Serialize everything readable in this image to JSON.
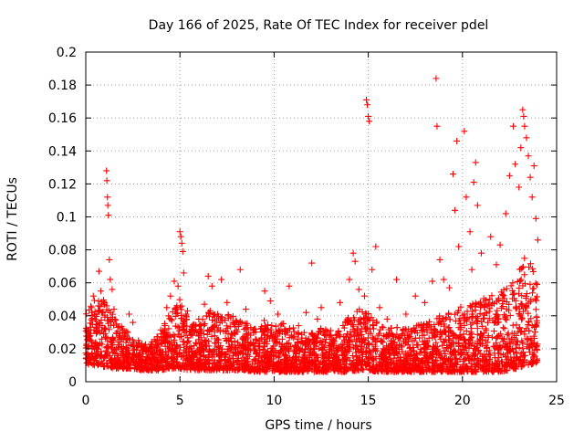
{
  "chart_data": {
    "type": "scatter",
    "title": "Day 166 of 2025, Rate Of TEC Index for receiver pdel",
    "xlabel": "GPS time / hours",
    "ylabel": "ROTI / TECUs",
    "xlim": [
      0,
      25
    ],
    "ylim": [
      0,
      0.2
    ],
    "x_ticks": [
      "0",
      "5",
      "10",
      "15",
      "20",
      "25"
    ],
    "y_ticks": [
      "0",
      "0.02",
      "0.04",
      "0.06",
      "0.08",
      "0.1",
      "0.12",
      "0.14",
      "0.16",
      "0.18",
      "0.2"
    ],
    "grid": true,
    "marker": "+",
    "color": "#ff0000",
    "points": [
      [
        0.1,
        0.021
      ],
      [
        0.2,
        0.028
      ],
      [
        0.3,
        0.045
      ],
      [
        0.4,
        0.052
      ],
      [
        0.5,
        0.038
      ],
      [
        0.6,
        0.031
      ],
      [
        0.7,
        0.067
      ],
      [
        0.8,
        0.055
      ],
      [
        0.9,
        0.042
      ],
      [
        1.0,
        0.048
      ],
      [
        1.1,
        0.128
      ],
      [
        1.12,
        0.122
      ],
      [
        1.15,
        0.112
      ],
      [
        1.17,
        0.107
      ],
      [
        1.2,
        0.101
      ],
      [
        1.25,
        0.074
      ],
      [
        1.3,
        0.062
      ],
      [
        1.4,
        0.056
      ],
      [
        1.5,
        0.044
      ],
      [
        1.7,
        0.033
      ],
      [
        2.0,
        0.026
      ],
      [
        2.3,
        0.041
      ],
      [
        2.5,
        0.036
      ],
      [
        2.8,
        0.022
      ],
      [
        3.0,
        0.019
      ],
      [
        3.5,
        0.024
      ],
      [
        3.8,
        0.018
      ],
      [
        4.0,
        0.029
      ],
      [
        4.3,
        0.045
      ],
      [
        4.5,
        0.052
      ],
      [
        4.7,
        0.061
      ],
      [
        4.9,
        0.058
      ],
      [
        5.0,
        0.091
      ],
      [
        5.05,
        0.088
      ],
      [
        5.1,
        0.084
      ],
      [
        5.15,
        0.079
      ],
      [
        5.2,
        0.066
      ],
      [
        5.4,
        0.043
      ],
      [
        5.7,
        0.031
      ],
      [
        6.0,
        0.038
      ],
      [
        6.3,
        0.047
      ],
      [
        6.5,
        0.064
      ],
      [
        6.7,
        0.058
      ],
      [
        7.0,
        0.041
      ],
      [
        7.2,
        0.062
      ],
      [
        7.5,
        0.048
      ],
      [
        7.8,
        0.036
      ],
      [
        8.2,
        0.068
      ],
      [
        8.5,
        0.044
      ],
      [
        9.0,
        0.032
      ],
      [
        9.5,
        0.055
      ],
      [
        9.8,
        0.049
      ],
      [
        10.2,
        0.041
      ],
      [
        10.8,
        0.058
      ],
      [
        11.3,
        0.034
      ],
      [
        11.7,
        0.042
      ],
      [
        12.0,
        0.072
      ],
      [
        12.3,
        0.038
      ],
      [
        12.5,
        0.045
      ],
      [
        13.0,
        0.031
      ],
      [
        13.5,
        0.048
      ],
      [
        14.0,
        0.062
      ],
      [
        14.2,
        0.078
      ],
      [
        14.3,
        0.073
      ],
      [
        14.5,
        0.056
      ],
      [
        14.8,
        0.052
      ],
      [
        14.9,
        0.171
      ],
      [
        14.95,
        0.168
      ],
      [
        15.0,
        0.161
      ],
      [
        15.05,
        0.158
      ],
      [
        15.2,
        0.068
      ],
      [
        15.4,
        0.082
      ],
      [
        15.6,
        0.045
      ],
      [
        16.0,
        0.038
      ],
      [
        16.5,
        0.062
      ],
      [
        17.0,
        0.041
      ],
      [
        17.5,
        0.052
      ],
      [
        18.0,
        0.048
      ],
      [
        18.4,
        0.061
      ],
      [
        18.6,
        0.184
      ],
      [
        18.65,
        0.155
      ],
      [
        18.8,
        0.074
      ],
      [
        19.0,
        0.062
      ],
      [
        19.3,
        0.057
      ],
      [
        19.5,
        0.126
      ],
      [
        19.6,
        0.104
      ],
      [
        19.7,
        0.146
      ],
      [
        19.8,
        0.082
      ],
      [
        20.1,
        0.152
      ],
      [
        20.2,
        0.112
      ],
      [
        20.4,
        0.091
      ],
      [
        20.5,
        0.068
      ],
      [
        20.6,
        0.121
      ],
      [
        20.7,
        0.133
      ],
      [
        20.8,
        0.107
      ],
      [
        21.0,
        0.078
      ],
      [
        21.5,
        0.088
      ],
      [
        21.8,
        0.071
      ],
      [
        22.0,
        0.083
      ],
      [
        22.3,
        0.102
      ],
      [
        22.5,
        0.125
      ],
      [
        22.7,
        0.155
      ],
      [
        22.8,
        0.132
      ],
      [
        23.0,
        0.118
      ],
      [
        23.1,
        0.142
      ],
      [
        23.2,
        0.165
      ],
      [
        23.25,
        0.161
      ],
      [
        23.3,
        0.155
      ],
      [
        23.4,
        0.148
      ],
      [
        23.5,
        0.137
      ],
      [
        23.6,
        0.124
      ],
      [
        23.7,
        0.112
      ],
      [
        23.8,
        0.131
      ],
      [
        23.9,
        0.099
      ],
      [
        24.0,
        0.086
      ]
    ],
    "band": [
      [
        0.0,
        0.01,
        0.042
      ],
      [
        0.5,
        0.01,
        0.05
      ],
      [
        1.0,
        0.009,
        0.05
      ],
      [
        1.5,
        0.008,
        0.04
      ],
      [
        2.0,
        0.008,
        0.032
      ],
      [
        2.5,
        0.008,
        0.03
      ],
      [
        3.0,
        0.007,
        0.024
      ],
      [
        3.5,
        0.007,
        0.024
      ],
      [
        4.0,
        0.007,
        0.032
      ],
      [
        4.5,
        0.008,
        0.044
      ],
      [
        5.0,
        0.008,
        0.05
      ],
      [
        5.5,
        0.007,
        0.036
      ],
      [
        6.0,
        0.007,
        0.034
      ],
      [
        6.5,
        0.007,
        0.044
      ],
      [
        7.0,
        0.007,
        0.04
      ],
      [
        7.5,
        0.007,
        0.042
      ],
      [
        8.0,
        0.007,
        0.04
      ],
      [
        8.5,
        0.007,
        0.036
      ],
      [
        9.0,
        0.006,
        0.034
      ],
      [
        9.5,
        0.006,
        0.038
      ],
      [
        10.0,
        0.006,
        0.034
      ],
      [
        10.5,
        0.006,
        0.036
      ],
      [
        11.0,
        0.006,
        0.034
      ],
      [
        11.5,
        0.006,
        0.03
      ],
      [
        12.0,
        0.006,
        0.03
      ],
      [
        12.5,
        0.006,
        0.034
      ],
      [
        13.0,
        0.006,
        0.03
      ],
      [
        13.5,
        0.006,
        0.032
      ],
      [
        14.0,
        0.006,
        0.04
      ],
      [
        14.5,
        0.007,
        0.044
      ],
      [
        15.0,
        0.007,
        0.042
      ],
      [
        15.5,
        0.006,
        0.036
      ],
      [
        16.0,
        0.006,
        0.032
      ],
      [
        16.5,
        0.006,
        0.034
      ],
      [
        17.0,
        0.006,
        0.032
      ],
      [
        17.5,
        0.006,
        0.034
      ],
      [
        18.0,
        0.006,
        0.036
      ],
      [
        18.5,
        0.006,
        0.04
      ],
      [
        19.0,
        0.006,
        0.04
      ],
      [
        19.5,
        0.006,
        0.044
      ],
      [
        20.0,
        0.006,
        0.046
      ],
      [
        20.5,
        0.006,
        0.048
      ],
      [
        21.0,
        0.006,
        0.05
      ],
      [
        21.5,
        0.006,
        0.052
      ],
      [
        22.0,
        0.006,
        0.055
      ],
      [
        22.5,
        0.007,
        0.058
      ],
      [
        23.0,
        0.008,
        0.07
      ],
      [
        23.5,
        0.01,
        0.08
      ],
      [
        24.0,
        0.012,
        0.06
      ]
    ]
  }
}
